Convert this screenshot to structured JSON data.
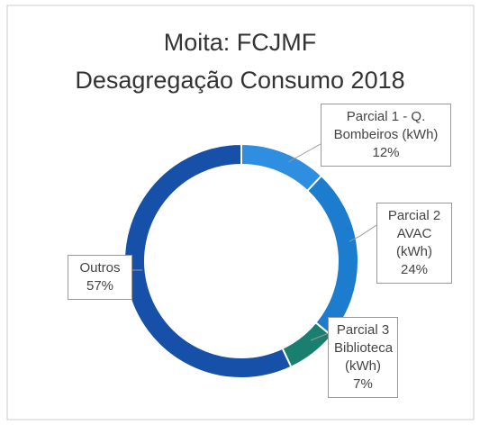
{
  "chart_data": {
    "type": "donut",
    "title": "Moita: FCJMF",
    "subtitle": "Desagregação Consumo 2018",
    "categories": [
      "Parcial 1 - Q. Bombeiros (kWh)",
      "Parcial 2 AVAC (kWh)",
      "Parcial 3 Biblioteca (kWh)",
      "Outros"
    ],
    "values": [
      12,
      24,
      7,
      57
    ],
    "value_labels": [
      "12%",
      "24%",
      "7%",
      "57%"
    ],
    "colors": [
      "#2f8ee0",
      "#1c7ccd",
      "#1b7f70",
      "#1650a8"
    ]
  }
}
